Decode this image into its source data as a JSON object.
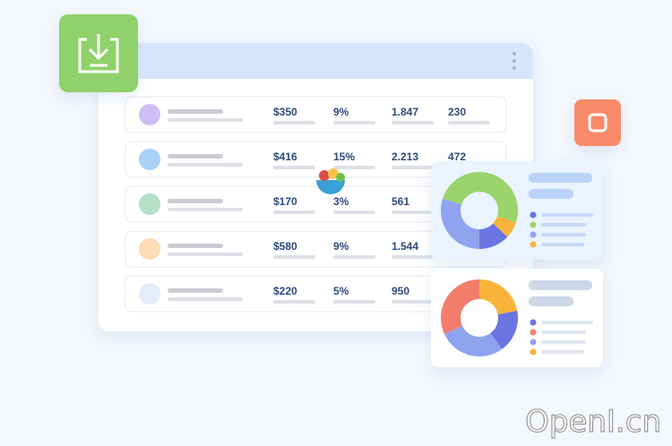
{
  "table": {
    "rows": [
      [
        "$350",
        "9%",
        "1.847",
        "230"
      ],
      [
        "$416",
        "15%",
        "2.213",
        "472"
      ],
      [
        "$170",
        "3%",
        "561"
      ],
      [
        "$580",
        "9%",
        "1.544"
      ],
      [
        "$220",
        "5%",
        "950"
      ]
    ]
  },
  "watermark": "OpenI.cn"
}
